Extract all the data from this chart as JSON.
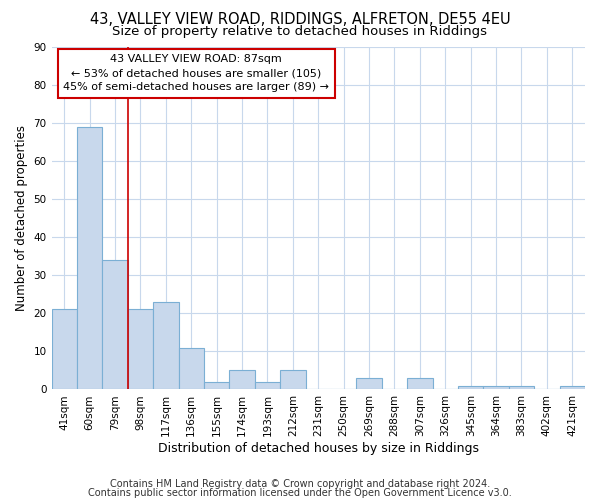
{
  "title1": "43, VALLEY VIEW ROAD, RIDDINGS, ALFRETON, DE55 4EU",
  "title2": "Size of property relative to detached houses in Riddings",
  "xlabel": "Distribution of detached houses by size in Riddings",
  "ylabel": "Number of detached properties",
  "footer1": "Contains HM Land Registry data © Crown copyright and database right 2024.",
  "footer2": "Contains public sector information licensed under the Open Government Licence v3.0.",
  "categories": [
    "41sqm",
    "60sqm",
    "79sqm",
    "98sqm",
    "117sqm",
    "136sqm",
    "155sqm",
    "174sqm",
    "193sqm",
    "212sqm",
    "231sqm",
    "250sqm",
    "269sqm",
    "288sqm",
    "307sqm",
    "326sqm",
    "345sqm",
    "364sqm",
    "383sqm",
    "402sqm",
    "421sqm"
  ],
  "values": [
    21,
    69,
    34,
    21,
    23,
    11,
    2,
    5,
    2,
    5,
    0,
    0,
    3,
    0,
    3,
    0,
    1,
    1,
    1,
    0,
    1
  ],
  "bar_color": "#c8d8ec",
  "bar_edge_color": "#7bafd4",
  "bar_linewidth": 0.8,
  "vline_x": 2.5,
  "vline_color": "#cc0000",
  "annotation_text_line1": "43 VALLEY VIEW ROAD: 87sqm",
  "annotation_text_line2": "← 53% of detached houses are smaller (105)",
  "annotation_text_line3": "45% of semi-detached houses are larger (89) →",
  "annotation_box_facecolor": "#ffffff",
  "annotation_box_edgecolor": "#cc0000",
  "ylim": [
    0,
    90
  ],
  "yticks": [
    0,
    10,
    20,
    30,
    40,
    50,
    60,
    70,
    80,
    90
  ],
  "grid_color": "#c8d8ec",
  "plot_bg_color": "#ffffff",
  "fig_bg_color": "#ffffff",
  "title1_fontsize": 10.5,
  "title2_fontsize": 9.5,
  "xlabel_fontsize": 9,
  "ylabel_fontsize": 8.5,
  "tick_fontsize": 7.5,
  "annotation_fontsize": 8,
  "footer_fontsize": 7
}
